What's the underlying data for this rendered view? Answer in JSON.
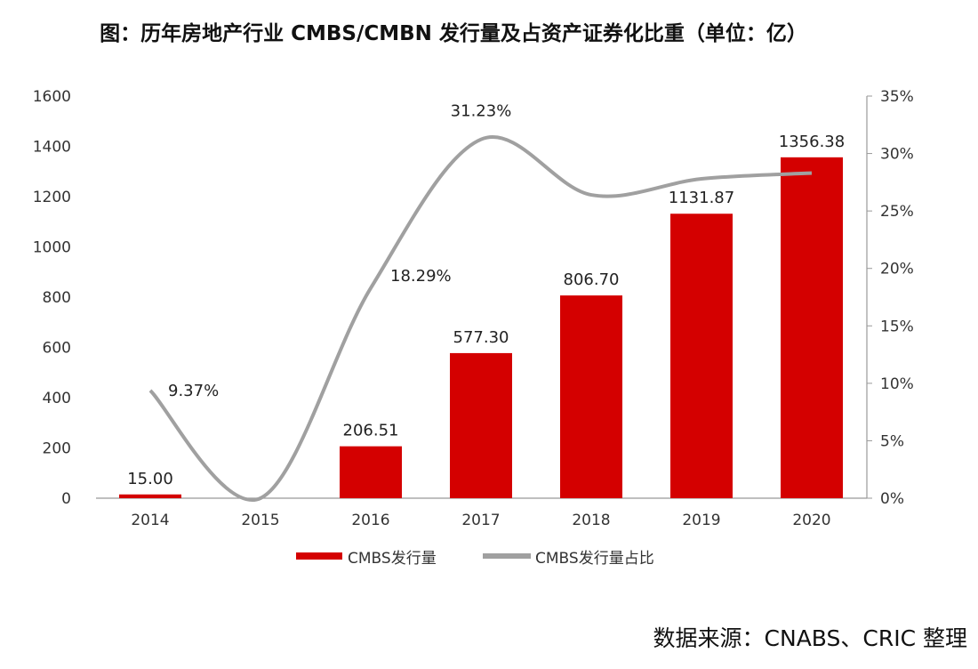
{
  "chart_data": {
    "type": "bar",
    "title": "图：历年房地产行业 CMBS/CMBN 发行量及占资产证券化比重（单位：亿）",
    "categories": [
      "2014",
      "2015",
      "2016",
      "2017",
      "2018",
      "2019",
      "2020"
    ],
    "series": [
      {
        "name": "CMBS发行量",
        "type": "bar",
        "axis": "left",
        "color": "#d40000",
        "values": [
          15.0,
          0,
          206.51,
          577.3,
          806.7,
          1131.87,
          1356.38
        ],
        "labels": [
          "15.00",
          "",
          "206.51",
          "577.30",
          "806.70",
          "1131.87",
          "1356.38"
        ]
      },
      {
        "name": "CMBS发行量占比",
        "type": "line",
        "axis": "right",
        "color": "#a0a0a0",
        "values": [
          9.37,
          0,
          18.29,
          31.23,
          26.4,
          27.8,
          28.3
        ],
        "labels": [
          "9.37%",
          "",
          "18.29%",
          "31.23%",
          "",
          "",
          ""
        ]
      }
    ],
    "yleft": {
      "ylim": [
        0,
        1600
      ],
      "ticks": [
        "0",
        "200",
        "400",
        "600",
        "800",
        "1000",
        "1200",
        "1400",
        "1600"
      ]
    },
    "yright": {
      "ylim": [
        0,
        35
      ],
      "ticks": [
        "0%",
        "5%",
        "10%",
        "15%",
        "20%",
        "25%",
        "30%",
        "35%"
      ]
    },
    "legend": "bottom",
    "grid": false
  },
  "source": "数据来源：CNABS、CRIC 整理"
}
